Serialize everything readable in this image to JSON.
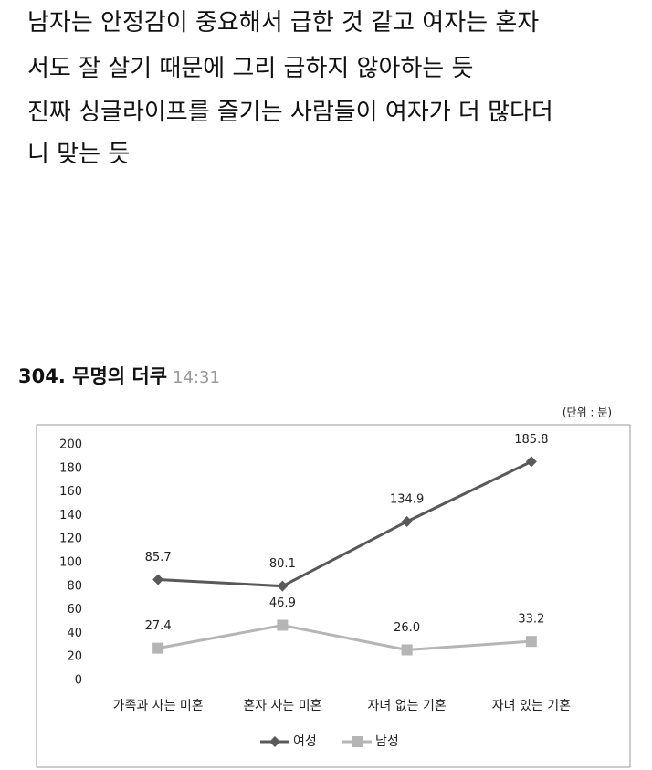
{
  "post": {
    "lines": [
      "남자는 안정감이 중요해서 급한 것 같고 여자는 혼자",
      "서도 잘 살기 때문에 그리 급하지 않아하는 듯",
      "진짜 싱글라이프를 즐기는 사람들이 여자가 더 많다더",
      "니 맞는 듯"
    ]
  },
  "comment": {
    "author": "304. 무명의 더쿠",
    "time": "14:31"
  },
  "chart_data": {
    "type": "line",
    "unit_label": "(단위 : 분)",
    "categories": [
      "가족과 사는 미혼",
      "혼자 사는 미혼",
      "자녀 없는 기혼",
      "자녀 있는 기혼"
    ],
    "series": [
      {
        "name": "여성",
        "color": "#595959",
        "marker": "diamond",
        "values": [
          85.7,
          80.1,
          134.9,
          185.8
        ]
      },
      {
        "name": "남성",
        "color": "#b5b5b5",
        "marker": "square",
        "values": [
          27.4,
          46.9,
          26.0,
          33.2
        ],
        "value_labels": [
          "27.4",
          "46.9",
          "26.0",
          "33.2"
        ]
      }
    ],
    "ylim": [
      0,
      200
    ],
    "yticks": [
      0,
      20,
      40,
      60,
      80,
      100,
      120,
      140,
      160,
      180,
      200
    ],
    "grid": false,
    "legend": "bottom"
  }
}
